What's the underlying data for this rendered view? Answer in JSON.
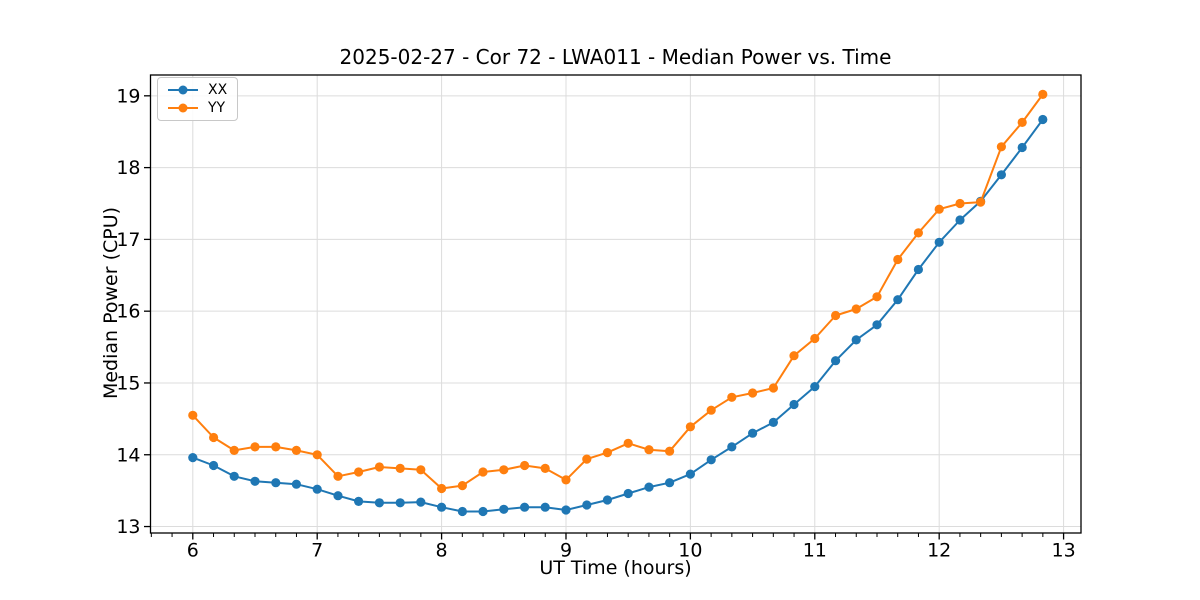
{
  "chart_data": {
    "type": "line",
    "title": "2025-02-27 - Cor 72 - LWA011 - Median Power vs. Time",
    "xlabel": "UT Time (hours)",
    "ylabel": "Median Power (CPU)",
    "grid": true,
    "legend_position": "upper left",
    "xlim": [
      5.66,
      13.14
    ],
    "ylim": [
      12.91,
      19.29
    ],
    "xticks": [
      6,
      7,
      8,
      9,
      10,
      11,
      12,
      13
    ],
    "yticks": [
      13,
      14,
      15,
      16,
      17,
      18,
      19
    ],
    "x_minor_tick_step": 0.1667,
    "x": [
      6.0,
      6.167,
      6.333,
      6.5,
      6.667,
      6.833,
      7.0,
      7.167,
      7.333,
      7.5,
      7.667,
      7.833,
      8.0,
      8.167,
      8.333,
      8.5,
      8.667,
      8.833,
      9.0,
      9.167,
      9.333,
      9.5,
      9.667,
      9.833,
      10.0,
      10.167,
      10.333,
      10.5,
      10.667,
      10.833,
      11.0,
      11.167,
      11.333,
      11.5,
      11.667,
      11.833,
      12.0,
      12.167,
      12.333,
      12.5,
      12.667,
      12.833
    ],
    "series": [
      {
        "name": "XX",
        "color": "#1f77b4",
        "values": [
          13.96,
          13.85,
          13.7,
          13.63,
          13.61,
          13.59,
          13.52,
          13.43,
          13.35,
          13.33,
          13.33,
          13.34,
          13.27,
          13.21,
          13.21,
          13.24,
          13.27,
          13.27,
          13.23,
          13.3,
          13.37,
          13.46,
          13.55,
          13.61,
          13.73,
          13.93,
          14.11,
          14.3,
          14.45,
          14.7,
          14.95,
          15.31,
          15.6,
          15.81,
          16.16,
          16.58,
          16.96,
          17.27,
          17.53,
          17.9,
          18.28,
          18.67
        ]
      },
      {
        "name": "YY",
        "color": "#ff7f0e",
        "values": [
          14.55,
          14.24,
          14.06,
          14.11,
          14.11,
          14.06,
          14.0,
          13.7,
          13.76,
          13.83,
          13.81,
          13.79,
          13.53,
          13.57,
          13.76,
          13.79,
          13.85,
          13.81,
          13.65,
          13.94,
          14.03,
          14.16,
          14.07,
          14.05,
          14.39,
          14.62,
          14.8,
          14.86,
          14.93,
          15.38,
          15.62,
          15.94,
          16.03,
          16.2,
          16.72,
          17.09,
          17.42,
          17.5,
          17.52,
          18.29,
          18.63,
          19.02
        ]
      }
    ]
  }
}
